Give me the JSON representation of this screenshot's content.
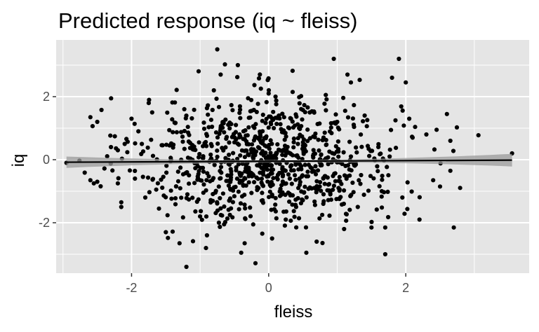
{
  "chart_data": {
    "type": "scatter",
    "title": "Predicted response (iq ~ fleiss)",
    "xlabel": "fleiss",
    "ylabel": "iq",
    "xlim": [
      -3.1,
      3.8
    ],
    "ylim": [
      -3.6,
      3.8
    ],
    "x_ticks": [
      -2,
      0,
      2
    ],
    "x_tick_labels": [
      "-2",
      "0",
      "2"
    ],
    "y_ticks": [
      -2,
      0,
      2
    ],
    "y_tick_labels": [
      "-2",
      "0",
      "2"
    ],
    "grid": true,
    "legend": "none",
    "colors": {
      "panel": "#e5e5e5",
      "grid_major": "#ffffff",
      "points": "#000000",
      "fit_line": "#000000",
      "confidence_band": "#999999",
      "tick_text": "#4d4d4d"
    },
    "fit": {
      "intercept": -0.05,
      "slope": 0.01,
      "x_range": [
        -2.95,
        3.55
      ],
      "se_at_ends": [
        0.18,
        0.2
      ],
      "se_at_center": 0.04
    },
    "series": [
      {
        "label_points": [
          {
            "x": -2.95,
            "y": -0.1
          },
          {
            "x": -2.6,
            "y": 1.35
          },
          {
            "x": -2.5,
            "y": 1.2
          },
          {
            "x": -2.6,
            "y": -0.65
          },
          {
            "x": -2.55,
            "y": -0.75
          },
          {
            "x": -2.5,
            "y": -0.7
          },
          {
            "x": -2.3,
            "y": 0.4
          },
          {
            "x": -2.2,
            "y": 0.3
          },
          {
            "x": -2.2,
            "y": -0.75
          },
          {
            "x": -2.15,
            "y": -1.35
          },
          {
            "x": -2.15,
            "y": -1.5
          },
          {
            "x": -2.1,
            "y": 0.5
          },
          {
            "x": -2.0,
            "y": 1.3
          },
          {
            "x": -1.95,
            "y": -0.6
          },
          {
            "x": -1.9,
            "y": 0.9
          },
          {
            "x": -1.85,
            "y": 0.5
          },
          {
            "x": -1.8,
            "y": -1.2
          },
          {
            "x": -1.7,
            "y": 1.5
          },
          {
            "x": -1.6,
            "y": -1.55
          },
          {
            "x": -1.5,
            "y": -2.3
          },
          {
            "x": -1.4,
            "y": 0.45
          },
          {
            "x": -1.3,
            "y": -2.65
          },
          {
            "x": -1.2,
            "y": -3.4
          },
          {
            "x": -1.0,
            "y": -1.8
          },
          {
            "x": -0.9,
            "y": -2.4
          },
          {
            "x": -0.8,
            "y": 2.2
          },
          {
            "x": -0.7,
            "y": 1.0
          },
          {
            "x": -0.6,
            "y": -0.5
          },
          {
            "x": -0.45,
            "y": 3.0
          },
          {
            "x": -0.4,
            "y": -2.95
          },
          {
            "x": -0.3,
            "y": 1.95
          },
          {
            "x": -0.2,
            "y": 0.2
          },
          {
            "x": -0.1,
            "y": -1.3
          },
          {
            "x": 0.0,
            "y": 2.1
          },
          {
            "x": 0.1,
            "y": 2.0
          },
          {
            "x": 0.2,
            "y": -0.3
          },
          {
            "x": 0.3,
            "y": 1.0
          },
          {
            "x": 0.4,
            "y": -1.5
          },
          {
            "x": 0.5,
            "y": 0.45
          },
          {
            "x": -0.75,
            "y": 3.5
          },
          {
            "x": -0.7,
            "y": 2.7
          },
          {
            "x": -0.65,
            "y": -2.05
          },
          {
            "x": -0.5,
            "y": 0.55
          },
          {
            "x": -0.35,
            "y": -2.65
          },
          {
            "x": -0.25,
            "y": 1.55
          },
          {
            "x": -0.15,
            "y": -0.9
          },
          {
            "x": 0.05,
            "y": -2.5
          },
          {
            "x": 0.15,
            "y": 1.4
          },
          {
            "x": 0.25,
            "y": -1.9
          },
          {
            "x": 0.35,
            "y": 2.15
          },
          {
            "x": 0.45,
            "y": -0.6
          },
          {
            "x": 0.55,
            "y": -2.95
          },
          {
            "x": 0.6,
            "y": 1.5
          },
          {
            "x": 0.7,
            "y": -2.6
          },
          {
            "x": 0.8,
            "y": 0.7
          },
          {
            "x": 0.9,
            "y": -1.1
          },
          {
            "x": 0.95,
            "y": 3.2
          },
          {
            "x": 1.0,
            "y": 1.2
          },
          {
            "x": 1.1,
            "y": -2.2
          },
          {
            "x": 1.15,
            "y": 2.7
          },
          {
            "x": 1.2,
            "y": 2.45
          },
          {
            "x": 1.2,
            "y": 0.1
          },
          {
            "x": 1.3,
            "y": -1.5
          },
          {
            "x": 1.4,
            "y": 1.4
          },
          {
            "x": 1.5,
            "y": -2.15
          },
          {
            "x": 1.6,
            "y": 0.4
          },
          {
            "x": 1.65,
            "y": -1.0
          },
          {
            "x": 1.7,
            "y": -3.0
          },
          {
            "x": 1.7,
            "y": -2.15
          },
          {
            "x": 1.8,
            "y": 2.6
          },
          {
            "x": 1.85,
            "y": 1.25
          },
          {
            "x": 1.9,
            "y": 3.2
          },
          {
            "x": 1.95,
            "y": -1.2
          },
          {
            "x": 2.0,
            "y": 2.45
          },
          {
            "x": 2.05,
            "y": 1.3
          },
          {
            "x": 2.1,
            "y": 0.7
          },
          {
            "x": 2.2,
            "y": -1.9
          },
          {
            "x": 2.3,
            "y": 0.8
          },
          {
            "x": 2.4,
            "y": -0.65
          },
          {
            "x": 2.45,
            "y": 0.95
          },
          {
            "x": 2.5,
            "y": -0.85
          },
          {
            "x": 2.6,
            "y": 1.45
          },
          {
            "x": 2.65,
            "y": 0.6
          },
          {
            "x": 2.65,
            "y": -0.35
          },
          {
            "x": 2.7,
            "y": -2.15
          },
          {
            "x": 3.55,
            "y": 0.2
          }
        ],
        "cloud": {
          "n": 880,
          "x_mean": 0.0,
          "x_sd": 0.95,
          "y_mean": 0.0,
          "y_sd": 1.0,
          "seed": 20240611
        }
      }
    ]
  }
}
